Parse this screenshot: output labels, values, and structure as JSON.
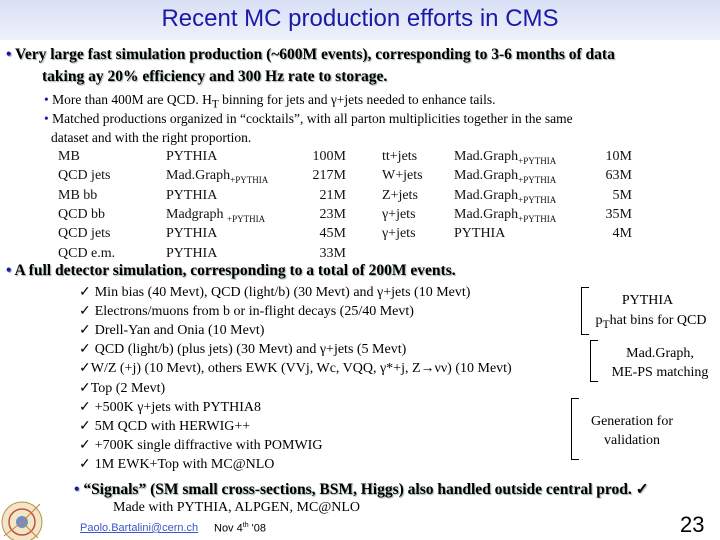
{
  "title": "Recent MC production efforts in CMS",
  "bullet1": {
    "line1": "Very large fast simulation production (~600M events), corresponding to 3-6 months of data",
    "line2": "taking ay 20% efficiency and 300 Hz rate to storage."
  },
  "sub1": "More than 400M are QCD. H",
  "sub1_sub": "T",
  "sub1_rest": " binning for jets and γ+jets needed to enhance tails.",
  "sub2_line1": "Matched productions organized in “cocktails”, with all parton multiplicities together in the same",
  "sub2_line2": "dataset and with the right proportion.",
  "table": {
    "left": [
      {
        "name": "MB",
        "gen": "PYTHIA",
        "gen_sub": "",
        "count": "100M"
      },
      {
        "name": "QCD jets",
        "gen": "Mad.Graph",
        "gen_sub": "+PYTHIA",
        "count": "217M"
      },
      {
        "name": "MB bb",
        "gen": "PYTHIA",
        "gen_sub": "",
        "count": "21M"
      },
      {
        "name": "QCD bb",
        "gen": "Madgraph ",
        "gen_sub": "+PYTHIA",
        "count": "23M"
      },
      {
        "name": "QCD jets",
        "gen": "PYTHIA",
        "gen_sub": "",
        "count": "45M"
      },
      {
        "name": "QCD e.m.",
        "gen": "PYTHIA",
        "gen_sub": "",
        "count": "33M"
      }
    ],
    "right": [
      {
        "name": "tt+jets",
        "gen": "Mad.Graph",
        "gen_sub": "+PYTHIA",
        "count": "10M"
      },
      {
        "name": "W+jets",
        "gen": "Mad.Graph",
        "gen_sub": "+PYTHIA",
        "count": "63M"
      },
      {
        "name": "Z+jets",
        "gen": "Mad.Graph",
        "gen_sub": "+PYTHIA",
        "count": "5M"
      },
      {
        "name": "γ+jets",
        "gen": "Mad.Graph",
        "gen_sub": "+PYTHIA",
        "count": "35M"
      },
      {
        "name": "γ+jets",
        "gen": "PYTHIA",
        "gen_sub": "",
        "count": "4M"
      }
    ]
  },
  "bullet2": "A full detector simulation, corresponding to a total of 200M events.",
  "checks": [
    "Min bias (40 Mevt), QCD (light/b) (30 Mevt) and γ+jets (10 Mevt)",
    "Electrons/muons from b or in-flight decays (25/40 Mevt)",
    "Drell-Yan and Onia (10 Mevt)",
    "QCD (light/b) (plus jets) (30 Mevt) and γ+jets (5 Mevt)",
    "W/Z (+j) (10 Mevt), others EWK (VVj, Wc, VQQ, γ*+j, Z→νν) (10 Mevt)",
    "Top (2 Mevt)",
    "+500K γ+jets with PYTHIA8",
    "5M QCD with HERWIG++",
    "+700K single diffractive with POMWIG",
    "1M EWK+Top with MC@NLO"
  ],
  "check_mark": "✓",
  "side_notes": {
    "pythia_line1": "PYTHIA",
    "pythia_line2_pre": "p",
    "pythia_line2_sub": "T",
    "pythia_line2_rest": "hat bins for QCD",
    "madgraph_line1": "Mad.Graph,",
    "madgraph_line2": "ME-PS matching",
    "gen_line1": "Generation for",
    "gen_line2": "validation"
  },
  "bullet3": {
    "line1": "“Signals” (SM small cross-sections, BSM, Higgs) also handled outside central prod.",
    "line2": "Made with PYTHIA, ALPGEN, MC@NLO"
  },
  "footer": {
    "email": "Paolo.Bartalini@cern.ch",
    "date_pre": "Nov 4",
    "date_sup": "th",
    "date_post": " '08",
    "page": "23"
  },
  "colors": {
    "title": "#1a1aa6",
    "bullet": "#1a1aa6",
    "link": "#3b56c8"
  }
}
